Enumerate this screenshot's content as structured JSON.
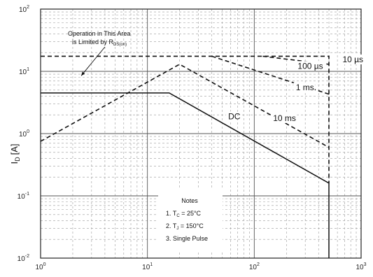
{
  "chart_data": {
    "type": "line",
    "title": "",
    "xlabel": "",
    "ylabel": "I",
    "ylabel_sub": "D",
    "ylabel_unit": "[A]",
    "x_scale": "log",
    "y_scale": "log",
    "xlim": [
      1,
      1000
    ],
    "ylim": [
      0.01,
      100
    ],
    "grid": true,
    "x_ticks": [
      {
        "value": 1,
        "base": "10",
        "exp": "0"
      },
      {
        "value": 10,
        "base": "10",
        "exp": "1"
      },
      {
        "value": 100,
        "base": "10",
        "exp": "2"
      },
      {
        "value": 1000,
        "base": "10",
        "exp": "3"
      }
    ],
    "y_ticks": [
      {
        "value": 100,
        "base": "10",
        "exp": "2"
      },
      {
        "value": 10,
        "base": "10",
        "exp": "1"
      },
      {
        "value": 1,
        "base": "10",
        "exp": "0"
      },
      {
        "value": 0.1,
        "base": "10",
        "exp": "-1"
      },
      {
        "value": 0.01,
        "base": "10",
        "exp": "-2"
      }
    ],
    "series": [
      {
        "name": "DC",
        "style": "solid",
        "points": [
          [
            1,
            4.5
          ],
          [
            16,
            4.5
          ],
          [
            500,
            0.16
          ],
          [
            500,
            0.01
          ]
        ]
      },
      {
        "name": "10 ms",
        "style": "dashed",
        "points": [
          [
            1,
            0.75
          ],
          [
            20,
            13
          ],
          [
            500,
            0.6
          ]
        ]
      },
      {
        "name": "1 ms",
        "style": "dashed",
        "points": [
          [
            40,
            17.5
          ],
          [
            500,
            4.3
          ]
        ]
      },
      {
        "name": "100 µs",
        "style": "dashed",
        "points": [
          [
            120,
            17.5
          ],
          [
            500,
            13
          ]
        ]
      },
      {
        "name": "10 µs",
        "style": "dashed",
        "points": [
          [
            1,
            17.5
          ],
          [
            500,
            17.5
          ],
          [
            500,
            0.16
          ]
        ]
      }
    ],
    "series_labels": [
      {
        "series": "DC",
        "text": "DC",
        "at": [
          57,
          1.7
        ]
      },
      {
        "series": "10 ms",
        "text": "10 ms",
        "at": [
          150,
          1.6
        ]
      },
      {
        "series": "1 ms",
        "text": "1 ms",
        "at": [
          245,
          5.0
        ]
      },
      {
        "series": "100 µs",
        "text": "100 µs",
        "at": [
          255,
          11.0
        ]
      },
      {
        "series": "10 µs",
        "text": "10 µs",
        "at": [
          670,
          14.0
        ]
      }
    ],
    "annotation": {
      "line1": "Operation in This Area",
      "line2_main": "is Limited by R",
      "line2_sub": "DS(on)",
      "arrow_to": [
        2.4,
        8.5
      ]
    },
    "notes": {
      "title": "Notes",
      "items": [
        {
          "prefix": "1. T",
          "sub": "C",
          "rest": " = 25°C"
        },
        {
          "prefix": "2. T",
          "sub": "J",
          "rest": " = 150°C"
        },
        {
          "prefix": "3. Single Pulse",
          "sub": "",
          "rest": ""
        }
      ]
    }
  }
}
